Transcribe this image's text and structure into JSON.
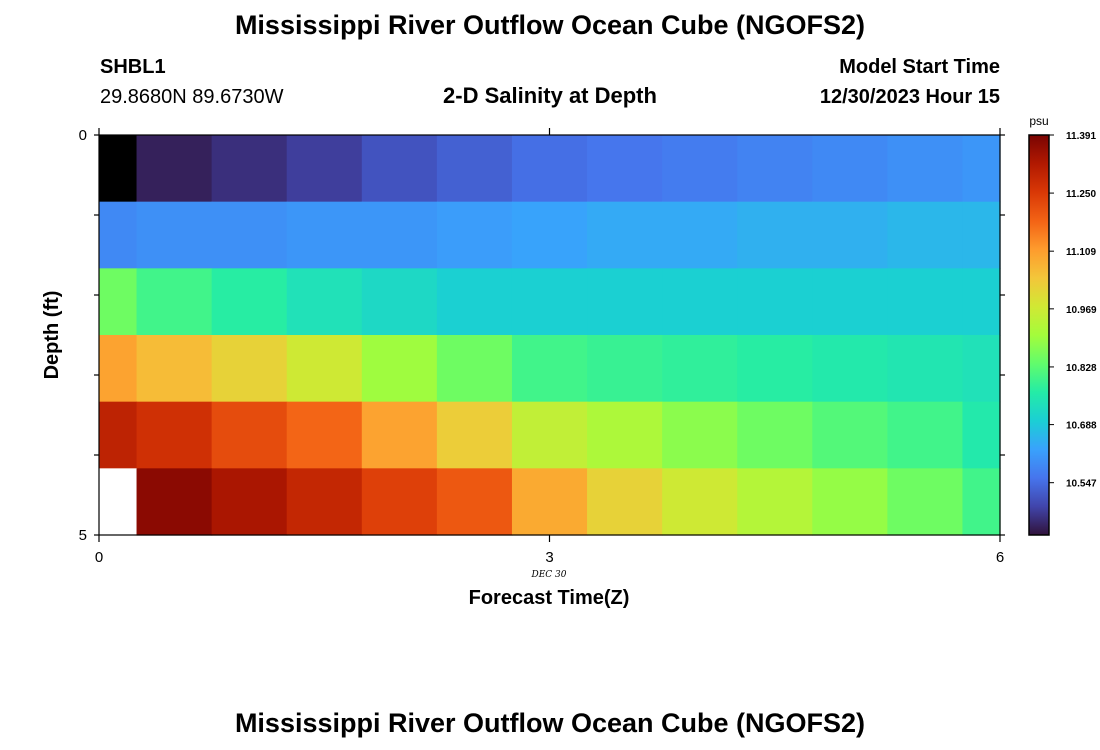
{
  "header": {
    "main_title": "Mississippi River Outflow Ocean Cube (NGOFS2)",
    "station_name": "SHBL1",
    "station_coords": "29.8680N  89.6730W",
    "plot_title": "2-D Salinity at Depth",
    "model_start_label": "Model Start Time",
    "model_start_value": "12/30/2023 Hour 15"
  },
  "footer": {
    "repeated_title": "Mississippi River Outflow Ocean Cube (NGOFS2)"
  },
  "chart_data": {
    "type": "heatmap",
    "title": "2-D Salinity at Depth",
    "xlabel": "Forecast Time(Z)",
    "ylabel": "Depth (ft)",
    "xlim": [
      0,
      6
    ],
    "ylim": [
      0,
      5
    ],
    "x_ticks": [
      0,
      3,
      6
    ],
    "x_tick_labels": [
      "0",
      "3",
      "6"
    ],
    "y_ticks": [
      0,
      5
    ],
    "y_tick_labels": [
      "0",
      "5"
    ],
    "date_label": "DEC 30",
    "x": [
      0,
      0.5,
      1,
      1.5,
      2,
      2.5,
      3,
      3.5,
      4,
      4.5,
      5,
      5.5,
      6
    ],
    "depth": [
      0,
      1,
      2,
      3,
      4,
      5
    ],
    "colorbar": {
      "units": "psu",
      "min": 10.42,
      "max": 11.391,
      "tick_values": [
        11.391,
        11.25,
        11.109,
        10.969,
        10.828,
        10.688,
        10.547
      ],
      "tick_labels": [
        "11.391",
        "11.250",
        "11.109",
        "10.969",
        "10.828",
        "10.688",
        "10.547"
      ],
      "palette": [
        "#30123b",
        "#4145ab",
        "#4675ed",
        "#39a2fc",
        "#1bcfd4",
        "#24eca6",
        "#61fc6c",
        "#a4fc3b",
        "#d1e834",
        "#f3c63a",
        "#fe9b2d",
        "#f36315",
        "#d93806",
        "#b11901",
        "#7a0403"
      ]
    },
    "values": [
      [
        10.4,
        10.44,
        10.46,
        10.48,
        10.51,
        10.53,
        10.55,
        10.56,
        10.57,
        10.58,
        10.59,
        10.6,
        10.61
      ],
      [
        10.59,
        10.6,
        10.6,
        10.61,
        10.61,
        10.62,
        10.63,
        10.64,
        10.64,
        10.65,
        10.65,
        10.66,
        10.66
      ],
      [
        10.85,
        10.8,
        10.77,
        10.74,
        10.72,
        10.7,
        10.7,
        10.7,
        10.7,
        10.7,
        10.7,
        10.7,
        10.7
      ],
      [
        11.1,
        11.06,
        11.02,
        10.97,
        10.9,
        10.85,
        10.8,
        10.79,
        10.78,
        10.77,
        10.76,
        10.75,
        10.74
      ],
      [
        11.3,
        11.27,
        11.22,
        11.18,
        11.1,
        11.03,
        10.95,
        10.92,
        10.88,
        10.85,
        10.82,
        10.8,
        10.76
      ],
      [
        null,
        11.37,
        11.33,
        11.29,
        11.24,
        11.2,
        11.09,
        11.02,
        10.97,
        10.93,
        10.89,
        10.85,
        10.8
      ]
    ]
  }
}
